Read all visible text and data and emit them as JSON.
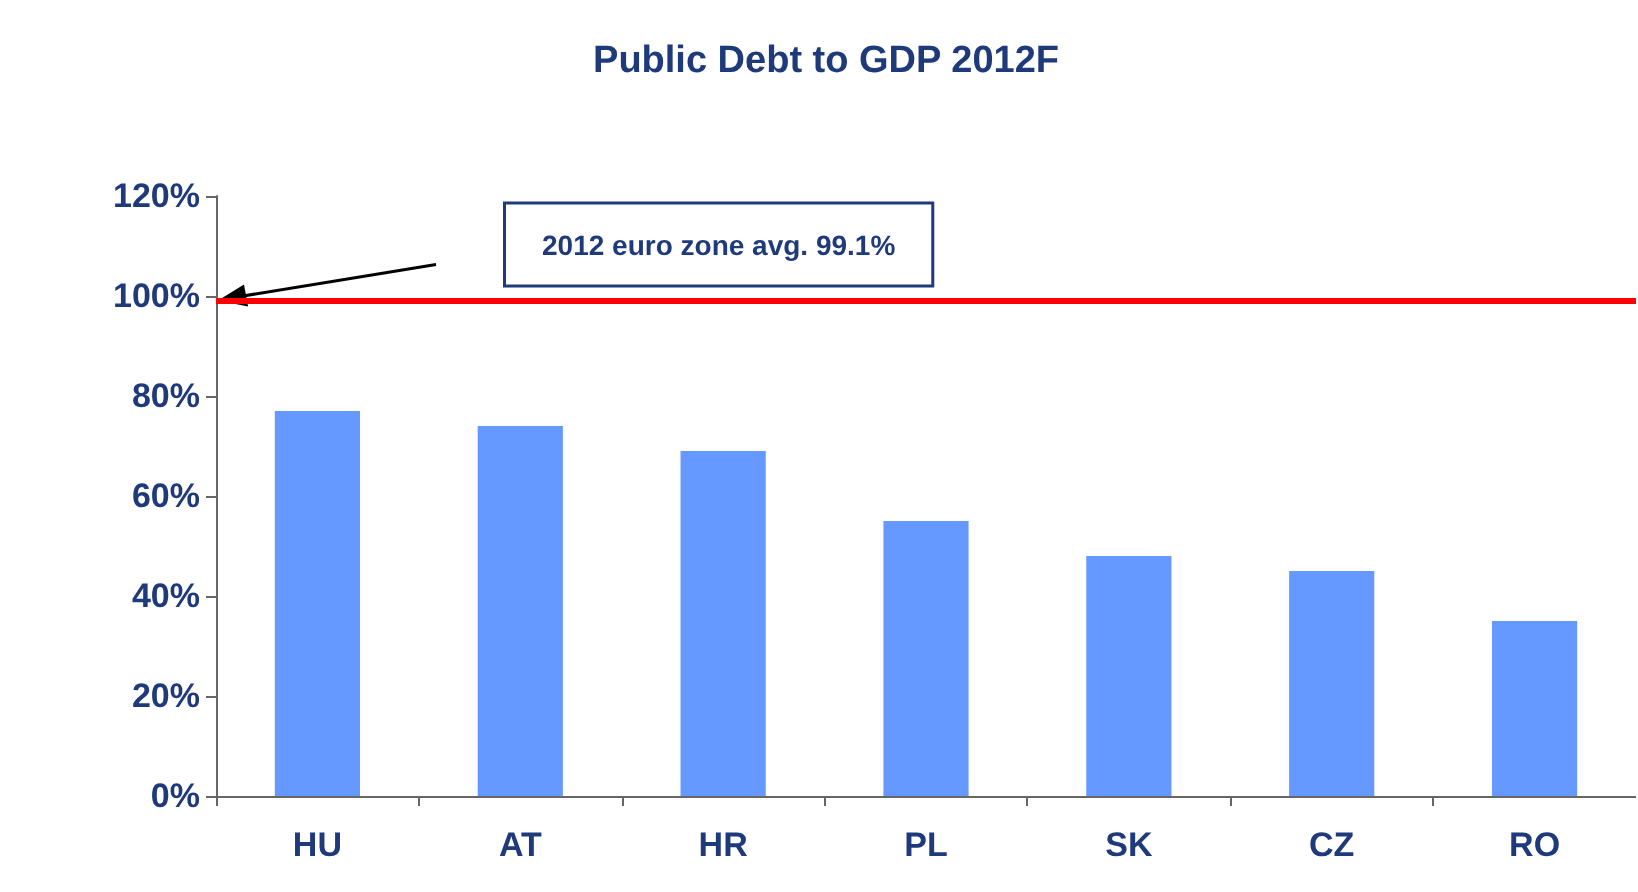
{
  "chart_data": {
    "type": "bar",
    "title": "Public Debt to GDP 2012F",
    "categories": [
      "HU",
      "AT",
      "HR",
      "PL",
      "SK",
      "CZ",
      "RO"
    ],
    "values": [
      77,
      74,
      69,
      55,
      48,
      45,
      35
    ],
    "color": "#6699ff",
    "ylim": [
      0,
      120
    ],
    "yticks": [
      {
        "value": 0,
        "label": "0%"
      },
      {
        "value": 20,
        "label": "20%"
      },
      {
        "value": 40,
        "label": "40%"
      },
      {
        "value": 60,
        "label": "60%"
      },
      {
        "value": 80,
        "label": "80%"
      },
      {
        "value": 100,
        "label": "100%"
      },
      {
        "value": 120,
        "label": "120%"
      }
    ],
    "grid": false,
    "ref_lines": [
      {
        "axis": "y",
        "value": 99.1,
        "label": "2012 euro zone avg. 99.1%",
        "color": "#ff0000"
      }
    ]
  }
}
